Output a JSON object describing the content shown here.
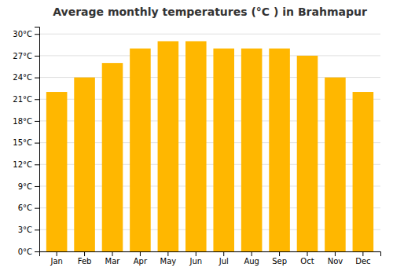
{
  "chart_data": {
    "type": "bar",
    "title": "Average monthly temperatures (°C ) in Brahmapur",
    "categories": [
      "Jan",
      "Feb",
      "Mar",
      "Apr",
      "May",
      "Jun",
      "Jul",
      "Aug",
      "Sep",
      "Oct",
      "Nov",
      "Dec"
    ],
    "values": [
      22,
      24,
      26,
      28,
      29,
      29,
      28,
      28,
      28,
      27,
      24,
      22
    ],
    "color": "#FFB700",
    "ylim": [
      0,
      31
    ],
    "yticks": [
      {
        "value": 0,
        "label": "0°C"
      },
      {
        "value": 3,
        "label": "3°C"
      },
      {
        "value": 6,
        "label": "6°C"
      },
      {
        "value": 9,
        "label": "9°C"
      },
      {
        "value": 12,
        "label": "12°C"
      },
      {
        "value": 15,
        "label": "15°C"
      },
      {
        "value": 18,
        "label": "18°C"
      },
      {
        "value": 21,
        "label": "21°C"
      },
      {
        "value": 24,
        "label": "24°C"
      },
      {
        "value": 27,
        "label": "27°C"
      },
      {
        "value": 30,
        "label": "30°C"
      }
    ],
    "grid": true
  }
}
